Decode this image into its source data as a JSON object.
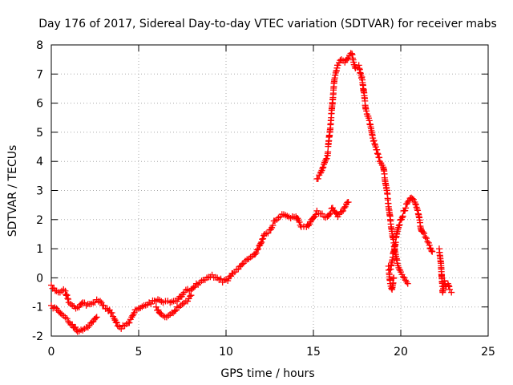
{
  "chart_data": {
    "type": "scatter",
    "title": "Day 176 of 2017, Sidereal Day-to-day VTEC variation (SDTVAR) for receiver mabs",
    "xlabel": "GPS time / hours",
    "ylabel": "SDTVAR / TECUs",
    "xlim": [
      0,
      25
    ],
    "ylim": [
      -2,
      8
    ],
    "xticks": [
      "0",
      "5",
      "10",
      "15",
      "20",
      "25"
    ],
    "yticks": [
      "-2",
      "-1",
      "0",
      "1",
      "2",
      "3",
      "4",
      "5",
      "6",
      "7",
      "8"
    ],
    "grid": true,
    "legend": "none",
    "marker": "+",
    "color": "#ff0000",
    "series": [
      {
        "x": [
          0.0,
          0.3,
          0.5,
          0.7,
          0.8,
          1.0,
          1.2,
          1.4,
          1.6,
          1.8,
          2.0,
          2.2,
          2.4,
          2.6,
          2.8,
          3.0,
          3.2,
          3.4,
          3.6,
          3.8,
          4.0,
          4.2,
          4.4,
          4.6,
          4.8,
          5.0,
          5.3,
          5.6,
          6.0,
          6.4,
          6.8,
          7.2,
          7.6,
          8.0,
          8.3,
          8.6,
          8.9,
          9.2,
          9.5,
          9.8,
          10.1,
          10.4,
          10.7,
          11.0,
          11.3,
          11.6,
          11.9,
          12.2,
          12.5,
          12.8,
          13.1,
          13.4,
          13.7,
          14.0,
          14.3,
          14.6,
          14.9,
          15.2,
          15.5,
          15.8,
          16.1,
          16.4,
          16.7,
          17.0
        ],
        "values": [
          -0.25,
          -0.45,
          -0.5,
          -0.4,
          -0.45,
          -0.85,
          -0.95,
          -1.05,
          -1.0,
          -0.85,
          -0.95,
          -0.9,
          -0.85,
          -0.75,
          -0.8,
          -0.95,
          -1.05,
          -1.2,
          -1.4,
          -1.65,
          -1.75,
          -1.65,
          -1.55,
          -1.35,
          -1.1,
          -1.05,
          -0.95,
          -0.85,
          -0.8,
          -0.85,
          -0.85,
          -0.8,
          -0.5,
          -0.4,
          -0.2,
          -0.1,
          0.0,
          0.1,
          0.0,
          -0.15,
          -0.1,
          0.15,
          0.3,
          0.5,
          0.65,
          0.8,
          1.1,
          1.5,
          1.65,
          1.95,
          2.1,
          2.15,
          2.05,
          2.1,
          1.75,
          1.75,
          2.0,
          2.3,
          2.2,
          2.1,
          2.4,
          2.1,
          2.3,
          2.6
        ]
      },
      {
        "x": [
          0.0,
          0.3,
          0.6,
          0.9,
          1.2,
          1.5,
          1.8,
          2.1,
          2.4,
          2.6
        ],
        "values": [
          -0.95,
          -1.05,
          -1.25,
          -1.4,
          -1.6,
          -1.85,
          -1.8,
          -1.7,
          -1.5,
          -1.35
        ]
      },
      {
        "x": [
          6.0,
          6.3,
          6.6,
          6.9,
          7.2,
          7.5,
          7.8,
          8.0
        ],
        "values": [
          -1.0,
          -1.25,
          -1.35,
          -1.2,
          -1.0,
          -0.9,
          -0.8,
          -0.6
        ]
      },
      {
        "x": [
          15.2,
          15.4,
          15.6,
          15.8,
          16.0,
          16.2,
          16.4,
          16.6,
          16.8,
          17.0,
          17.2,
          17.4,
          17.6,
          17.8,
          18.0,
          18.2,
          18.4,
          18.6,
          18.8,
          19.0,
          19.2,
          19.4,
          19.6,
          19.8,
          20.0,
          20.2,
          20.4
        ],
        "values": [
          3.4,
          3.6,
          3.9,
          4.2,
          5.4,
          6.8,
          7.3,
          7.5,
          7.4,
          7.55,
          7.7,
          7.2,
          7.3,
          6.8,
          5.8,
          5.4,
          4.8,
          4.4,
          4.0,
          3.8,
          3.0,
          2.0,
          1.2,
          0.5,
          0.2,
          0.0,
          -0.2
        ]
      },
      {
        "x": [
          19.4,
          19.6,
          19.8,
          20.0,
          20.2,
          20.4,
          20.6,
          20.8,
          21.0,
          21.2,
          21.4,
          21.6,
          21.8
        ],
        "values": [
          0.3,
          0.9,
          1.6,
          2.0,
          2.3,
          2.6,
          2.75,
          2.6,
          2.2,
          1.6,
          1.4,
          1.2,
          0.9
        ]
      },
      {
        "x": [
          19.3,
          19.4,
          19.5,
          19.6
        ],
        "values": [
          0.4,
          -0.2,
          -0.4,
          0.0
        ]
      },
      {
        "x": [
          22.2,
          22.3,
          22.4,
          22.5,
          22.6,
          22.7,
          22.8,
          22.9
        ],
        "values": [
          1.0,
          0.5,
          -0.5,
          -0.1,
          -0.3,
          -0.2,
          -0.4,
          -0.5
        ]
      }
    ]
  }
}
